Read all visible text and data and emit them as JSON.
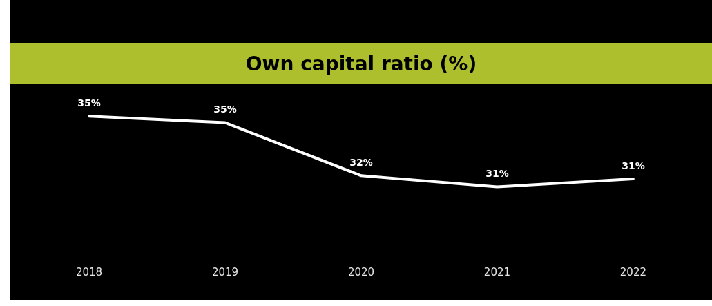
{
  "chart_data": {
    "type": "line",
    "title": "Own capital ratio (%)",
    "categories": [
      "2018",
      "2019",
      "2020",
      "2021",
      "2022"
    ],
    "series": [
      {
        "color": "#ffffff",
        "values": [
          35.3,
          34.9,
          31.6,
          30.9,
          31.4
        ],
        "value_labels": [
          "35%",
          "35%",
          "32%",
          "31%",
          "31%"
        ]
      }
    ],
    "tick_labels": "x",
    "grid": false,
    "legend": false,
    "line_style": "solid"
  }
}
